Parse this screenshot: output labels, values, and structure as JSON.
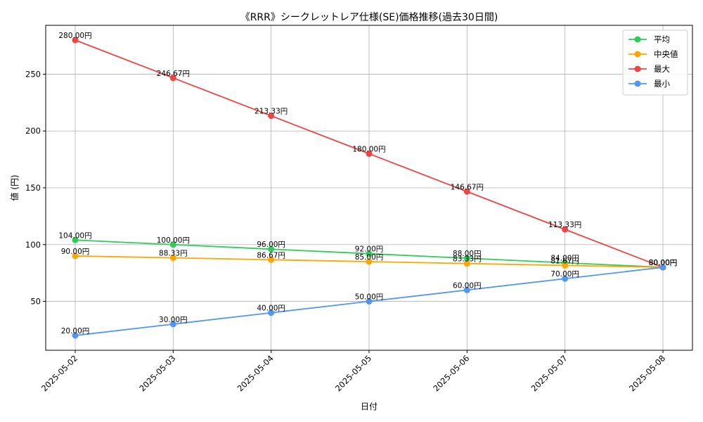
{
  "chart_data": {
    "type": "line",
    "title": "《RRR》シークレットレア仕様(SE)価格推移(過去30日間)",
    "xlabel": "日付",
    "ylabel": "値 (円)",
    "categories": [
      "2025-05-02",
      "2025-05-03",
      "2025-05-04",
      "2025-05-05",
      "2025-05-06",
      "2025-05-07",
      "2025-05-08"
    ],
    "ylim": [
      7.0,
      293.0
    ],
    "yticks": [
      50,
      100,
      150,
      200,
      250
    ],
    "grid": true,
    "legend_position": "top-right",
    "value_suffix": "円",
    "series": [
      {
        "name": "平均",
        "color": "#2ecc5a",
        "values": [
          104.0,
          100.0,
          96.0,
          92.0,
          88.0,
          84.0,
          80.0
        ],
        "labels": [
          "104.00円",
          "100.00円",
          "96.00円",
          "92.00円",
          "88.00円",
          "84.00円",
          "80.00円"
        ]
      },
      {
        "name": "中央値",
        "color": "#ffa500",
        "values": [
          90.0,
          88.33,
          86.67,
          85.0,
          83.33,
          81.67,
          80.0
        ],
        "labels": [
          "90.00円",
          "88.33円",
          "86.67円",
          "85.00円",
          "83.33円",
          "81.67円",
          "80.00円"
        ]
      },
      {
        "name": "最大",
        "color": "#ef4444",
        "values": [
          280.0,
          246.67,
          213.33,
          180.0,
          146.67,
          113.33,
          80.0
        ],
        "labels": [
          "280.00円",
          "246.67円",
          "213.33円",
          "180.00円",
          "146.67円",
          "113.33円",
          "80.00円"
        ]
      },
      {
        "name": "最小",
        "color": "#4f97f0",
        "values": [
          20.0,
          30.0,
          40.0,
          50.0,
          60.0,
          70.0,
          80.0
        ],
        "labels": [
          "20.00円",
          "30.00円",
          "40.00円",
          "50.00円",
          "60.00円",
          "70.00円",
          "80.00円"
        ]
      }
    ]
  }
}
